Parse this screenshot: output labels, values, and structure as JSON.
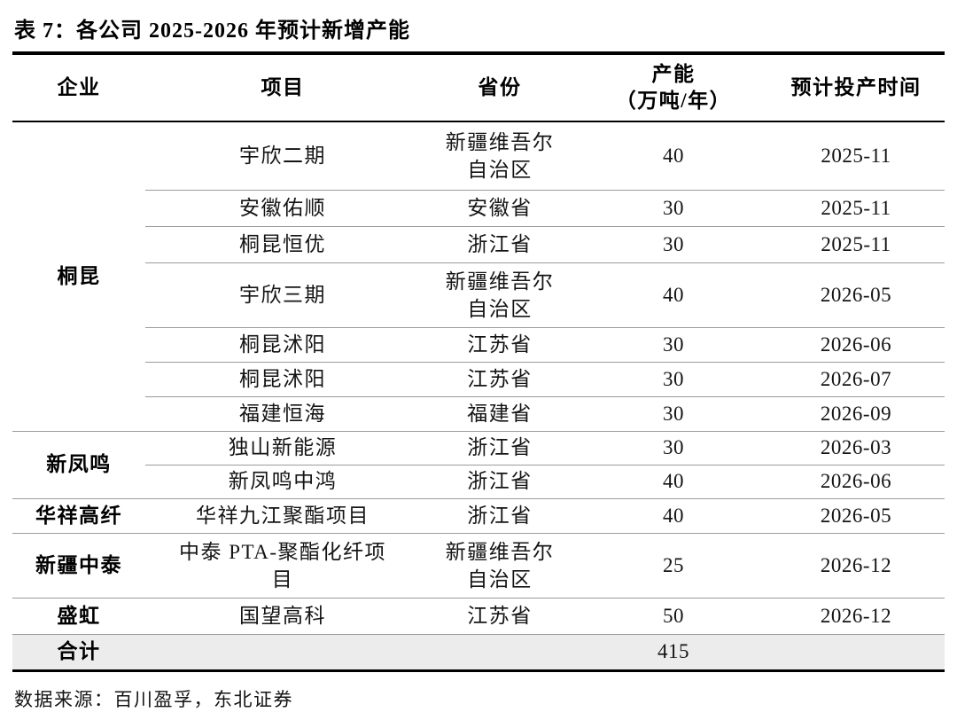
{
  "title": "表 7：各公司 2025-2026 年预计新增产能",
  "columns": {
    "company": "企业",
    "project": "项目",
    "province": "省份",
    "capacity_line1": "产能",
    "capacity_line2": "（万吨/年）",
    "date": "预计投产时间"
  },
  "rows": [
    {
      "company": "桐昆",
      "project": "宇欣二期",
      "province": "新疆维吾尔自治区",
      "capacity": "40",
      "date": "2025-11"
    },
    {
      "project": "安徽佑顺",
      "province": "安徽省",
      "capacity": "30",
      "date": "2025-11"
    },
    {
      "project": "桐昆恒优",
      "province": "浙江省",
      "capacity": "30",
      "date": "2025-11"
    },
    {
      "project": "宇欣三期",
      "province": "新疆维吾尔自治区",
      "capacity": "40",
      "date": "2026-05"
    },
    {
      "project": "桐昆沭阳",
      "province": "江苏省",
      "capacity": "30",
      "date": "2026-06"
    },
    {
      "project": "桐昆沭阳",
      "province": "江苏省",
      "capacity": "30",
      "date": "2026-07"
    },
    {
      "project": "福建恒海",
      "province": "福建省",
      "capacity": "30",
      "date": "2026-09"
    },
    {
      "company": "新凤鸣",
      "project": "独山新能源",
      "province": "浙江省",
      "capacity": "30",
      "date": "2026-03"
    },
    {
      "project": "新凤鸣中鸿",
      "province": "浙江省",
      "capacity": "40",
      "date": "2026-06"
    },
    {
      "company": "华祥高纤",
      "project": "华祥九江聚酯项目",
      "province": "浙江省",
      "capacity": "40",
      "date": "2026-05"
    },
    {
      "company": "新疆中泰",
      "project": "中泰 PTA-聚酯化纤项目",
      "province": "新疆维吾尔自治区",
      "capacity": "25",
      "date": "2026-12"
    },
    {
      "company": "盛虹",
      "project": "国望高科",
      "province": "江苏省",
      "capacity": "50",
      "date": "2026-12"
    }
  ],
  "total": {
    "label": "合计",
    "capacity": "415"
  },
  "source": "数据来源：百川盈孚，东北证券"
}
